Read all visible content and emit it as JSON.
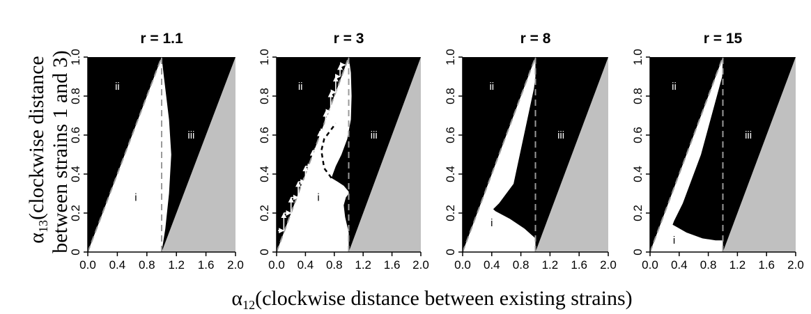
{
  "figure": {
    "xlabel_symbol": "α",
    "xlabel_sub": "12",
    "xlabel_text": "(clockwise distance between existing strains)",
    "ylabel_symbol": "α",
    "ylabel_sub": "13",
    "ylabel_line1": "(clockwise distance",
    "ylabel_line2": "between strains 1 and 3)"
  },
  "colors": {
    "region_black": "#000000",
    "region_white": "#ffffff",
    "region_gray": "#c0c0c0",
    "dashed": "#9a9a9a"
  },
  "chart_data": [
    {
      "type": "area",
      "title": "r = 1.1",
      "xlim": [
        0,
        2
      ],
      "ylim": [
        0,
        1
      ],
      "xticks": [
        "0.0",
        "0.4",
        "0.8",
        "1.2",
        "1.6",
        "2.0"
      ],
      "yticks": [
        "0",
        "0.2",
        "0.4",
        "0.6",
        "0.8",
        "1.0"
      ],
      "region_labels": [
        {
          "text": "ii",
          "x": 0.4,
          "y": 0.85
        },
        {
          "text": "iii",
          "x": 1.4,
          "y": 0.6
        },
        {
          "text": "i",
          "x": 0.65,
          "y": 0.28
        }
      ],
      "white_region": [
        [
          0,
          0
        ],
        [
          1,
          1
        ],
        [
          1.03,
          0.9
        ],
        [
          1.1,
          0.68
        ],
        [
          1.13,
          0.5
        ],
        [
          1.1,
          0.3
        ],
        [
          1.05,
          0.12
        ],
        [
          1,
          0
        ]
      ],
      "dashed_lines": [
        [
          [
            0,
            0
          ],
          [
            1,
            1
          ]
        ],
        [
          [
            1,
            0
          ],
          [
            1,
            1
          ]
        ]
      ],
      "arrows": [],
      "dashed_curve": []
    },
    {
      "type": "area",
      "title": "r = 3",
      "xlim": [
        0,
        2
      ],
      "ylim": [
        0,
        1
      ],
      "xticks": [
        "0.0",
        "0.4",
        "0.8",
        "1.2",
        "1.6",
        "2.0"
      ],
      "yticks": [
        "0",
        "0.2",
        "0.4",
        "0.6",
        "0.8",
        "1.0"
      ],
      "region_labels": [
        {
          "text": "ii",
          "x": 0.33,
          "y": 0.85
        },
        {
          "text": "iii",
          "x": 1.35,
          "y": 0.6
        },
        {
          "text": "i",
          "x": 0.58,
          "y": 0.28
        }
      ],
      "white_region": [
        [
          0,
          0
        ],
        [
          1,
          1
        ],
        [
          1.03,
          0.92
        ],
        [
          1.04,
          0.8
        ],
        [
          1.03,
          0.68
        ],
        [
          0.98,
          0.58
        ],
        [
          0.9,
          0.5
        ],
        [
          0.82,
          0.44
        ],
        [
          0.76,
          0.38
        ],
        [
          0.85,
          0.36
        ],
        [
          0.93,
          0.34
        ],
        [
          1,
          0.31
        ],
        [
          1,
          0.3
        ],
        [
          0.96,
          0.28
        ],
        [
          0.93,
          0.24
        ],
        [
          0.95,
          0.18
        ],
        [
          1,
          0.1
        ],
        [
          1,
          0
        ]
      ],
      "dashed_lines": [
        [
          [
            0,
            0
          ],
          [
            1,
            1
          ]
        ],
        [
          [
            1,
            0
          ],
          [
            1,
            1
          ]
        ]
      ],
      "arrows": [
        [
          0.02,
          0.11,
          0.1,
          0.11
        ],
        [
          0.1,
          0.11,
          0.1,
          0.2
        ],
        [
          0.1,
          0.2,
          0.2,
          0.2
        ],
        [
          0.2,
          0.2,
          0.2,
          0.28
        ],
        [
          0.2,
          0.28,
          0.3,
          0.28
        ],
        [
          0.3,
          0.28,
          0.3,
          0.36
        ],
        [
          0.3,
          0.36,
          0.4,
          0.36
        ],
        [
          0.4,
          0.36,
          0.4,
          0.44
        ],
        [
          0.4,
          0.44,
          0.5,
          0.44
        ],
        [
          0.5,
          0.44,
          0.5,
          0.52
        ],
        [
          0.5,
          0.52,
          0.6,
          0.52
        ],
        [
          0.6,
          0.52,
          0.6,
          0.62
        ],
        [
          0.6,
          0.62,
          0.68,
          0.62
        ],
        [
          0.68,
          0.62,
          0.68,
          0.72
        ],
        [
          0.68,
          0.72,
          0.75,
          0.72
        ],
        [
          0.75,
          0.72,
          0.75,
          0.82
        ],
        [
          0.75,
          0.82,
          0.82,
          0.82
        ],
        [
          0.82,
          0.82,
          0.82,
          0.9
        ],
        [
          0.82,
          0.9,
          0.88,
          0.9
        ],
        [
          0.88,
          0.9,
          0.88,
          0.96
        ],
        [
          0.88,
          0.96,
          0.95,
          0.96
        ]
      ],
      "dashed_curve": [
        [
          0.76,
          0.38
        ],
        [
          0.66,
          0.43
        ],
        [
          0.62,
          0.52
        ],
        [
          0.66,
          0.58
        ],
        [
          0.74,
          0.62
        ],
        [
          0.82,
          0.66
        ]
      ]
    },
    {
      "type": "area",
      "title": "r = 8",
      "xlim": [
        0,
        2
      ],
      "ylim": [
        0,
        1
      ],
      "xticks": [
        "0.0",
        "0.4",
        "0.8",
        "1.2",
        "1.6",
        "2.0"
      ],
      "yticks": [
        "0",
        "0.2",
        "0.4",
        "0.6",
        "0.8",
        "1.0"
      ],
      "region_labels": [
        {
          "text": "ii",
          "x": 0.4,
          "y": 0.85
        },
        {
          "text": "iii",
          "x": 1.35,
          "y": 0.6
        },
        {
          "text": "i",
          "x": 0.4,
          "y": 0.15
        }
      ],
      "white_region": [
        [
          0,
          0
        ],
        [
          1,
          1
        ],
        [
          1,
          0.9
        ],
        [
          0.98,
          0.84
        ],
        [
          0.7,
          0.35
        ],
        [
          0.5,
          0.25
        ],
        [
          0.42,
          0.22
        ],
        [
          0.45,
          0.21
        ],
        [
          0.65,
          0.17
        ],
        [
          0.85,
          0.12
        ],
        [
          0.97,
          0.08
        ],
        [
          1,
          0.07
        ],
        [
          1,
          0
        ]
      ],
      "dashed_lines": [
        [
          [
            0,
            0
          ],
          [
            1,
            1
          ]
        ],
        [
          [
            1,
            0
          ],
          [
            1,
            1
          ]
        ]
      ],
      "arrows": [],
      "dashed_curve": []
    },
    {
      "type": "area",
      "title": "r = 15",
      "xlim": [
        0,
        2
      ],
      "ylim": [
        0,
        1
      ],
      "xticks": [
        "0.0",
        "0.4",
        "0.8",
        "1.2",
        "1.6",
        "2.0"
      ],
      "yticks": [
        "0",
        "0.2",
        "0.4",
        "0.6",
        "0.8",
        "1.0"
      ],
      "region_labels": [
        {
          "text": "ii",
          "x": 0.33,
          "y": 0.85
        },
        {
          "text": "iii",
          "x": 1.35,
          "y": 0.6
        },
        {
          "text": "i",
          "x": 0.33,
          "y": 0.06
        }
      ],
      "white_region": [
        [
          0,
          0
        ],
        [
          1,
          1
        ],
        [
          0.99,
          0.9
        ],
        [
          0.7,
          0.5
        ],
        [
          0.45,
          0.25
        ],
        [
          0.33,
          0.16
        ],
        [
          0.31,
          0.14
        ],
        [
          0.36,
          0.13
        ],
        [
          0.5,
          0.1
        ],
        [
          0.72,
          0.07
        ],
        [
          0.9,
          0.06
        ],
        [
          1,
          0.06
        ],
        [
          1,
          0
        ]
      ],
      "dashed_lines": [
        [
          [
            0,
            0
          ],
          [
            1,
            1
          ]
        ],
        [
          [
            1,
            0
          ],
          [
            1,
            1
          ]
        ]
      ],
      "arrows": [],
      "dashed_curve": []
    }
  ]
}
